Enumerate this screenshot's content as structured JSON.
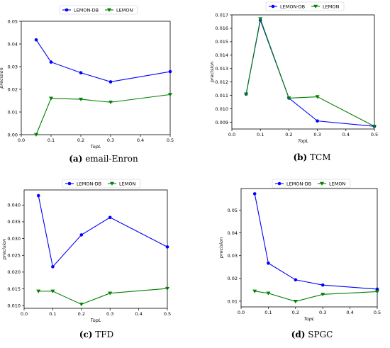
{
  "chart_data": [
    {
      "type": "line",
      "letter": "(a)",
      "caption": "email-Enron",
      "xlabel": "TopL",
      "ylabel": "precision",
      "xlim": [
        0.0,
        0.5
      ],
      "ylim": [
        0.0,
        0.05
      ],
      "xticks": [
        "0.0",
        "0.1",
        "0.2",
        "0.3",
        "0.4",
        "0.5"
      ],
      "yticks": [
        "0.00",
        "0.01",
        "0.02",
        "0.03",
        "0.04",
        "0.05"
      ],
      "x": [
        0.05,
        0.1,
        0.2,
        0.3,
        0.5
      ],
      "series": [
        {
          "name": "LEMON-DB",
          "color": "#0000ff",
          "marker": "circle",
          "values": [
            0.0418,
            0.032,
            0.0273,
            0.0233,
            0.0278
          ]
        },
        {
          "name": "LEMON",
          "color": "#008000",
          "marker": "triangle-down",
          "values": [
            0.0,
            0.016,
            0.0156,
            0.0143,
            0.0177
          ]
        }
      ],
      "legend": "top"
    },
    {
      "type": "line",
      "letter": "(b)",
      "caption": "TCM",
      "xlabel": "TopL",
      "ylabel": "precision",
      "xlim": [
        0.0,
        0.5
      ],
      "ylim": [
        0.0085,
        0.017
      ],
      "xticks": [
        "0.0",
        "0.1",
        "0.2",
        "0.3",
        "0.4",
        "0.5"
      ],
      "yticks": [
        "0.009",
        "0.010",
        "0.011",
        "0.012",
        "0.013",
        "0.014",
        "0.015",
        "0.016",
        "0.017"
      ],
      "x": [
        0.05,
        0.1,
        0.2,
        0.3,
        0.5
      ],
      "series": [
        {
          "name": "LEMON-DB",
          "color": "#0000ff",
          "marker": "circle",
          "values": [
            0.0111,
            0.0166,
            0.0108,
            0.0091,
            0.0087
          ]
        },
        {
          "name": "LEMON",
          "color": "#008000",
          "marker": "triangle-down",
          "values": [
            0.0111,
            0.0167,
            0.0108,
            0.0109,
            0.0087
          ]
        }
      ],
      "legend": "top"
    },
    {
      "type": "line",
      "letter": "(c)",
      "caption": "TFD",
      "xlabel": "TopL",
      "ylabel": "precision",
      "xlim": [
        0.0,
        0.5
      ],
      "ylim": [
        0.0092,
        0.0445
      ],
      "xticks": [
        "0.0",
        "0.1",
        "0.2",
        "0.3",
        "0.4",
        "0.5"
      ],
      "yticks": [
        "0.010",
        "0.015",
        "0.020",
        "0.025",
        "0.030",
        "0.035",
        "0.040"
      ],
      "x": [
        0.05,
        0.1,
        0.2,
        0.3,
        0.5
      ],
      "series": [
        {
          "name": "LEMON-DB",
          "color": "#0000ff",
          "marker": "circle",
          "values": [
            0.0428,
            0.0216,
            0.0311,
            0.0363,
            0.0275
          ]
        },
        {
          "name": "LEMON",
          "color": "#008000",
          "marker": "triangle-down",
          "values": [
            0.0143,
            0.0143,
            0.0104,
            0.0137,
            0.0151
          ]
        }
      ],
      "legend": "top"
    },
    {
      "type": "line",
      "letter": "(d)",
      "caption": "SPGC",
      "xlabel": "TopL",
      "ylabel": "precision",
      "xlim": [
        0.0,
        0.5
      ],
      "ylim": [
        0.0075,
        0.0595
      ],
      "xticks": [
        "0.0",
        "0.1",
        "0.2",
        "0.3",
        "0.4",
        "0.5"
      ],
      "yticks": [
        "0.01",
        "0.02",
        "0.03",
        "0.04",
        "0.05"
      ],
      "x": [
        0.05,
        0.1,
        0.2,
        0.3,
        0.5
      ],
      "series": [
        {
          "name": "LEMON-DB",
          "color": "#0000ff",
          "marker": "circle",
          "values": [
            0.0572,
            0.0267,
            0.0194,
            0.0171,
            0.0153
          ]
        },
        {
          "name": "LEMON",
          "color": "#008000",
          "marker": "triangle-down",
          "values": [
            0.0144,
            0.0135,
            0.0099,
            0.013,
            0.0142
          ]
        }
      ],
      "legend": "top"
    }
  ]
}
